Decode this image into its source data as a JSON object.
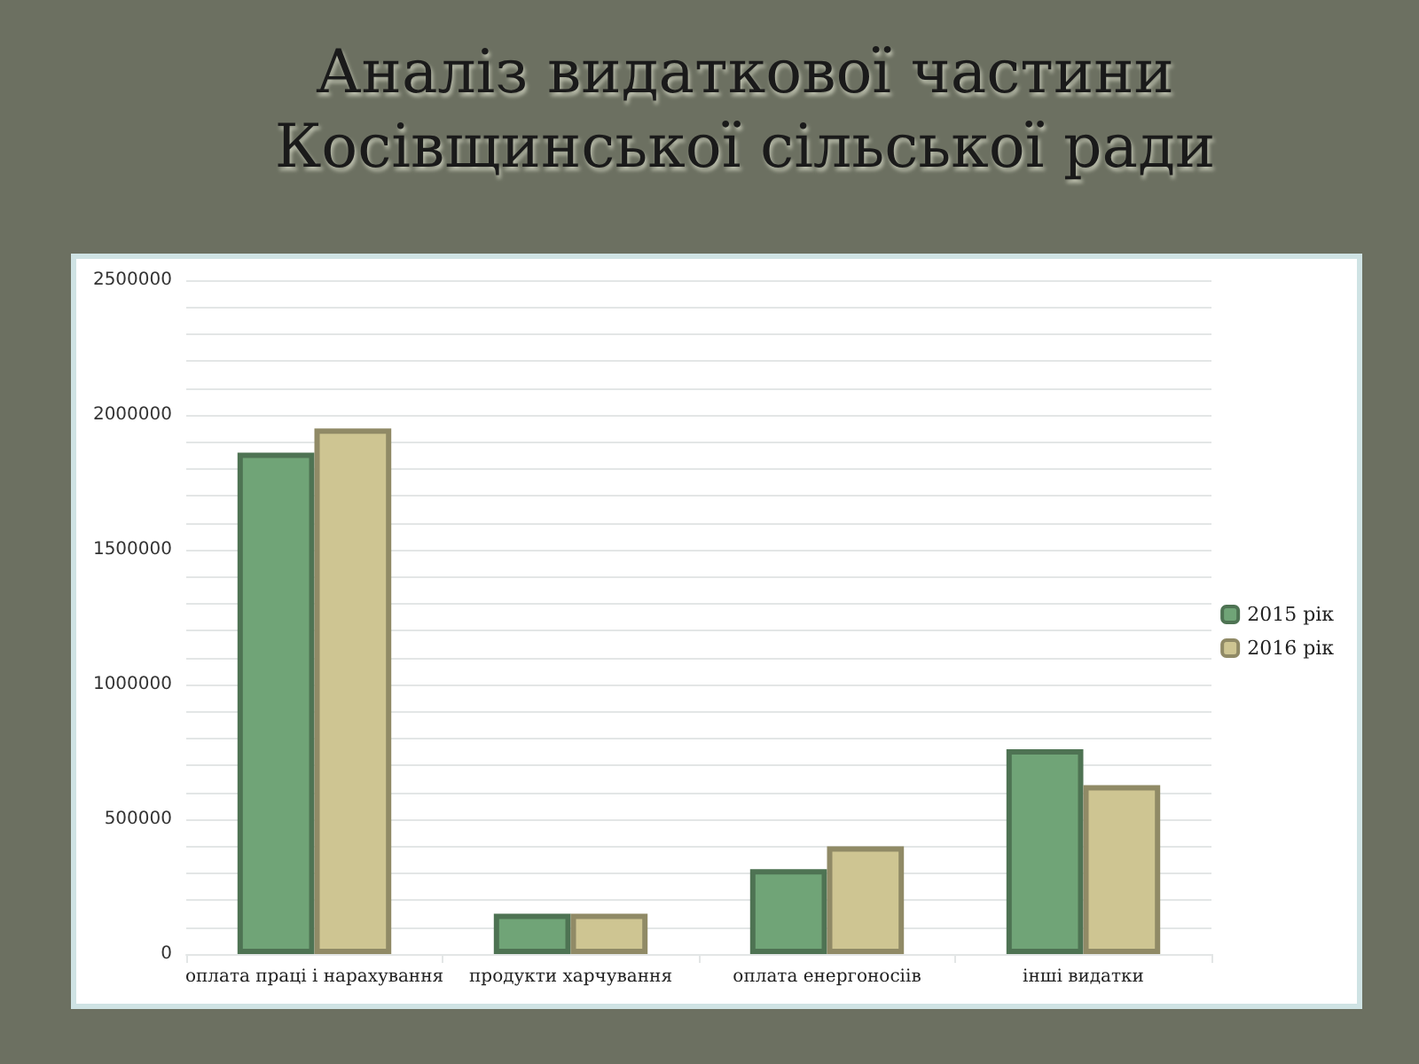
{
  "chart_data": {
    "type": "bar",
    "title": "Аналіз видаткової частини Косівщинської сільської ради",
    "categories": [
      "оплата праці і нарахування",
      "продукти харчування",
      "оплата енергоносіів",
      "інші видатки"
    ],
    "series": [
      {
        "name": "2015 рік",
        "color": "#70a477",
        "values": [
          1860000,
          150000,
          315000,
          760000
        ]
      },
      {
        "name": "2016 рік",
        "color": "#cec592",
        "values": [
          1950000,
          150000,
          400000,
          627000
        ]
      }
    ],
    "ylim": [
      0,
      2500000
    ],
    "yticks": [
      0,
      500000,
      1000000,
      1500000,
      2000000,
      2500000
    ],
    "grid": true,
    "legend": "right"
  }
}
